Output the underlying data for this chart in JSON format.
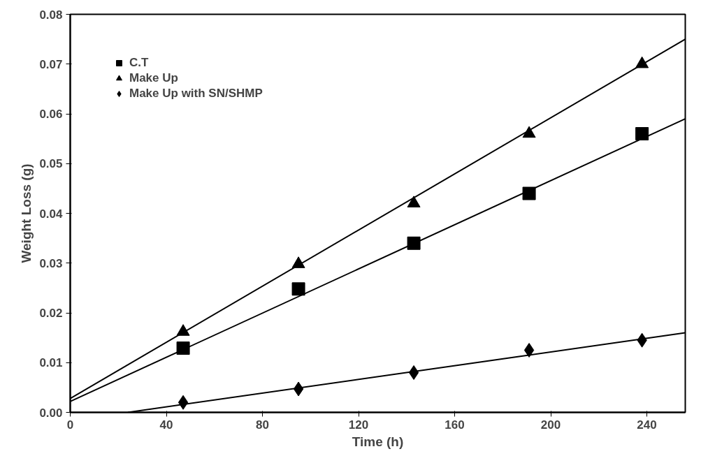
{
  "chart_data": {
    "type": "scatter",
    "xlabel": "Time (h)",
    "ylabel": "Weight Loss (g)",
    "xlim": [
      0,
      256
    ],
    "ylim": [
      0,
      0.08
    ],
    "xticks": [
      0,
      40,
      80,
      120,
      160,
      200,
      240
    ],
    "yticks": [
      {
        "value": 0,
        "label": "0.00"
      },
      {
        "value": 0.01,
        "label": "0.01"
      },
      {
        "value": 0.02,
        "label": "0.02"
      },
      {
        "value": 0.03,
        "label": "0.03"
      },
      {
        "value": 0.04,
        "label": "0.04"
      },
      {
        "value": 0.05,
        "label": "0.05"
      },
      {
        "value": 0.06,
        "label": "0.06"
      },
      {
        "value": 0.07,
        "label": "0.07"
      },
      {
        "value": 0.08,
        "label": "0.08"
      }
    ],
    "grid": false,
    "legend": "top left",
    "series": [
      {
        "name": "C.T",
        "color": "#000000",
        "marker": "square",
        "x": [
          47,
          95,
          143,
          191,
          238
        ],
        "values": [
          0.0129,
          0.0248,
          0.034,
          0.044,
          0.056
        ]
      },
      {
        "name": "Make Up",
        "color": "#000000",
        "marker": "triangle",
        "x": [
          47,
          95,
          143,
          191,
          238
        ],
        "values": [
          0.0162,
          0.0298,
          0.042,
          0.056,
          0.07
        ]
      },
      {
        "name": "Make Up with SN/SHMP",
        "color": "#000000",
        "marker": "diamond",
        "x": [
          47,
          95,
          143,
          191,
          238
        ],
        "values": [
          0.002,
          0.0047,
          0.008,
          0.0125,
          0.0145
        ]
      },
      {
        "type": "line",
        "color": "#000000",
        "x": [
          0,
          256
        ],
        "values": [
          0.0022,
          0.059
        ]
      },
      {
        "type": "line",
        "color": "#000000",
        "x": [
          0,
          256
        ],
        "values": [
          0.0028,
          0.075
        ]
      },
      {
        "type": "line",
        "color": "#000000",
        "x": [
          24,
          256
        ],
        "values": [
          0,
          0.016
        ]
      }
    ]
  }
}
